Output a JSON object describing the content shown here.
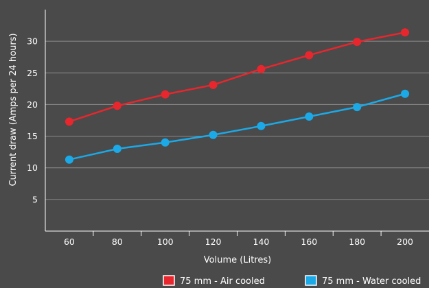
{
  "chart_data": {
    "type": "line",
    "x": [
      60,
      80,
      100,
      120,
      140,
      160,
      180,
      200
    ],
    "xlabel": "Volume (Litres)",
    "ylabel": "Current draw (Amps per 24 hours)",
    "yticks": [
      5,
      10,
      15,
      20,
      25,
      30
    ],
    "ylim": [
      0,
      35
    ],
    "grid": true,
    "legend_position": "bottom-right",
    "series": [
      {
        "name": "75 mm - Air cooled",
        "color": "#e8262d",
        "values": [
          17.3,
          19.8,
          21.6,
          23.1,
          25.6,
          27.8,
          29.9,
          31.4
        ]
      },
      {
        "name": "75 mm - Water cooled",
        "color": "#1ba9e8",
        "values": [
          11.3,
          13.0,
          14.0,
          15.2,
          16.6,
          18.1,
          19.6,
          21.7
        ]
      }
    ]
  }
}
